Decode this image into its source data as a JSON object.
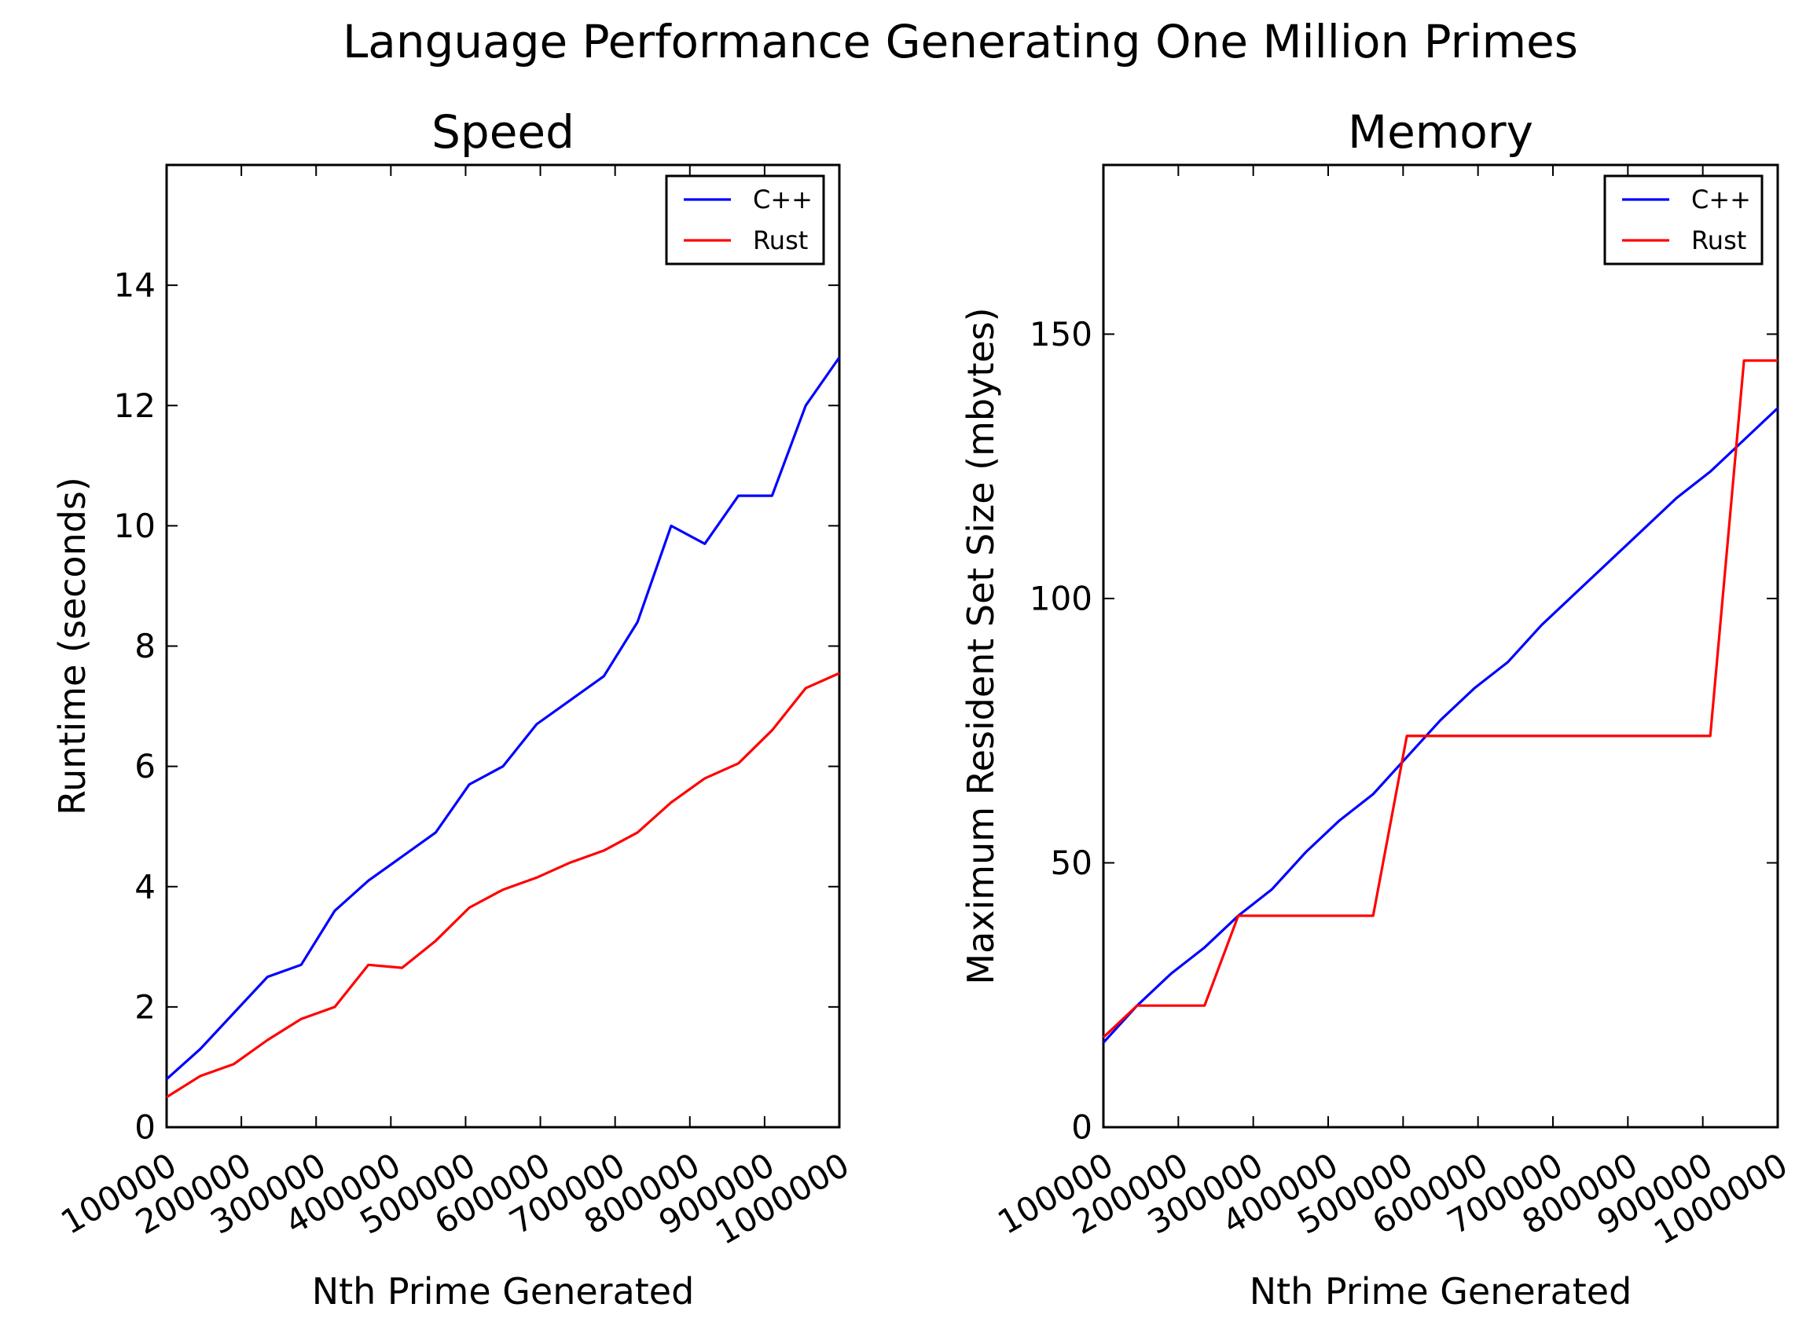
{
  "suptitle": "Language Performance Generating One Million Primes",
  "chart_data": [
    {
      "type": "line",
      "title": "Speed",
      "xlabel": "Nth Prime Generated",
      "ylabel": "Runtime (seconds)",
      "xlim": [
        100000,
        1000000
      ],
      "ylim": [
        0,
        16
      ],
      "x_ticks": [
        100000,
        200000,
        300000,
        400000,
        500000,
        600000,
        700000,
        800000,
        900000,
        1000000
      ],
      "x_tick_labels": [
        "100000",
        "200000",
        "300000",
        "400000",
        "500000",
        "600000",
        "700000",
        "800000",
        "900000",
        "1000000"
      ],
      "y_ticks": [
        0,
        2,
        4,
        6,
        8,
        10,
        12,
        14
      ],
      "y_tick_labels": [
        "0",
        "2",
        "4",
        "6",
        "8",
        "10",
        "12",
        "14"
      ],
      "grid": false,
      "legend": "upper right",
      "x": [
        100000,
        145000,
        190000,
        235000,
        280000,
        325000,
        370000,
        415000,
        460000,
        505000,
        550000,
        595000,
        640000,
        685000,
        730000,
        775000,
        820000,
        865000,
        910000,
        955000,
        1000000
      ],
      "series": [
        {
          "name": "C++",
          "color": "#0000ff",
          "values": [
            0.8,
            1.3,
            1.9,
            2.5,
            2.7,
            3.6,
            4.1,
            4.5,
            4.9,
            5.7,
            6.0,
            6.7,
            7.1,
            7.5,
            8.4,
            10.0,
            9.7,
            10.5,
            10.5,
            12.0,
            12.8
          ]
        },
        {
          "name": "Rust",
          "color": "#ff0000",
          "values": [
            0.5,
            0.85,
            1.05,
            1.45,
            1.8,
            2.0,
            2.7,
            2.65,
            3.1,
            3.65,
            3.95,
            4.15,
            4.4,
            4.6,
            4.9,
            5.4,
            5.8,
            6.05,
            6.6,
            7.3,
            7.55
          ]
        }
      ]
    },
    {
      "type": "line",
      "title": "Memory",
      "xlabel": "Nth Prime Generated",
      "ylabel": "Maximum Resident Set Size (mbytes)",
      "xlim": [
        100000,
        1000000
      ],
      "ylim": [
        0,
        182
      ],
      "x_ticks": [
        100000,
        200000,
        300000,
        400000,
        500000,
        600000,
        700000,
        800000,
        900000,
        1000000
      ],
      "x_tick_labels": [
        "100000",
        "200000",
        "300000",
        "400000",
        "500000",
        "600000",
        "700000",
        "800000",
        "900000",
        "1000000"
      ],
      "y_ticks": [
        0,
        50,
        100,
        150
      ],
      "y_tick_labels": [
        "0",
        "50",
        "100",
        "150"
      ],
      "grid": false,
      "legend": "upper right",
      "series": [
        {
          "name": "C++",
          "color": "#0000ff",
          "points": [
            [
              100000,
              16
            ],
            [
              145000,
              23
            ],
            [
              190000,
              29
            ],
            [
              235000,
              34
            ],
            [
              280000,
              40
            ],
            [
              325000,
              45
            ],
            [
              370000,
              52
            ],
            [
              415000,
              58
            ],
            [
              460000,
              63
            ],
            [
              505000,
              70
            ],
            [
              550000,
              77
            ],
            [
              595000,
              83
            ],
            [
              640000,
              88
            ],
            [
              685000,
              95
            ],
            [
              730000,
              101
            ],
            [
              775000,
              107
            ],
            [
              820000,
              113
            ],
            [
              865000,
              119
            ],
            [
              910000,
              124
            ],
            [
              955000,
              130
            ],
            [
              1000000,
              136
            ]
          ]
        },
        {
          "name": "Rust",
          "color": "#ff0000",
          "points": [
            [
              100000,
              17
            ],
            [
              145000,
              23
            ],
            [
              190000,
              23
            ],
            [
              235000,
              23
            ],
            [
              280000,
              40
            ],
            [
              325000,
              40
            ],
            [
              370000,
              40
            ],
            [
              415000,
              40
            ],
            [
              460000,
              40
            ],
            [
              505000,
              74
            ],
            [
              550000,
              74
            ],
            [
              595000,
              74
            ],
            [
              640000,
              74
            ],
            [
              685000,
              74
            ],
            [
              730000,
              74
            ],
            [
              775000,
              74
            ],
            [
              820000,
              74
            ],
            [
              865000,
              74
            ],
            [
              910000,
              74
            ],
            [
              955000,
              145
            ],
            [
              1000000,
              145
            ]
          ]
        }
      ]
    }
  ]
}
